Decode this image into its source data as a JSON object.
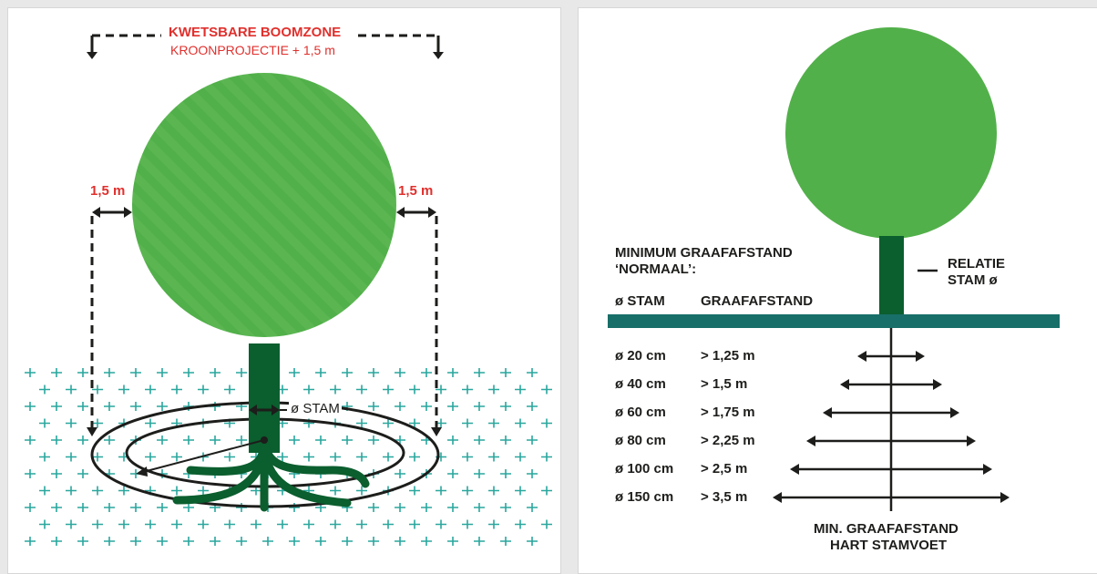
{
  "left_panel": {
    "title": "KWETSBARE BOOMZONE",
    "subtitle": "KROONPROJECTIE + 1,5 m",
    "margin_left": "1,5 m",
    "margin_right": "1,5 m",
    "stam_label": "ø STAM"
  },
  "right_panel": {
    "heading_line1": "MINIMUM GRAAFAFSTAND",
    "heading_line2": "‘NORMAAL’:",
    "col_stam": "ø STAM",
    "col_graaf": "GRAAFAFSTAND",
    "relatie_line1": "RELATIE",
    "relatie_line2": "STAM ø",
    "rows": [
      {
        "stam": "ø  20 cm",
        "afstand": "> 1,25 m"
      },
      {
        "stam": "ø  40 cm",
        "afstand": "> 1,5 m"
      },
      {
        "stam": "ø  60 cm",
        "afstand": "> 1,75 m"
      },
      {
        "stam": "ø  80 cm",
        "afstand": "> 2,25 m"
      },
      {
        "stam": "ø 100 cm",
        "afstand": "> 2,5 m"
      },
      {
        "stam": "ø 150 cm",
        "afstand": "> 3,5 m"
      }
    ],
    "footer_line1": "MIN. GRAAFAFSTAND",
    "footer_line2": "HART STAMVOET"
  },
  "colors": {
    "crown": "#52b04a",
    "trunk": "#0b5e2e",
    "ground_bar": "#186e68",
    "accent_red": "#e0302d",
    "grid_cross": "#2aa79e"
  }
}
